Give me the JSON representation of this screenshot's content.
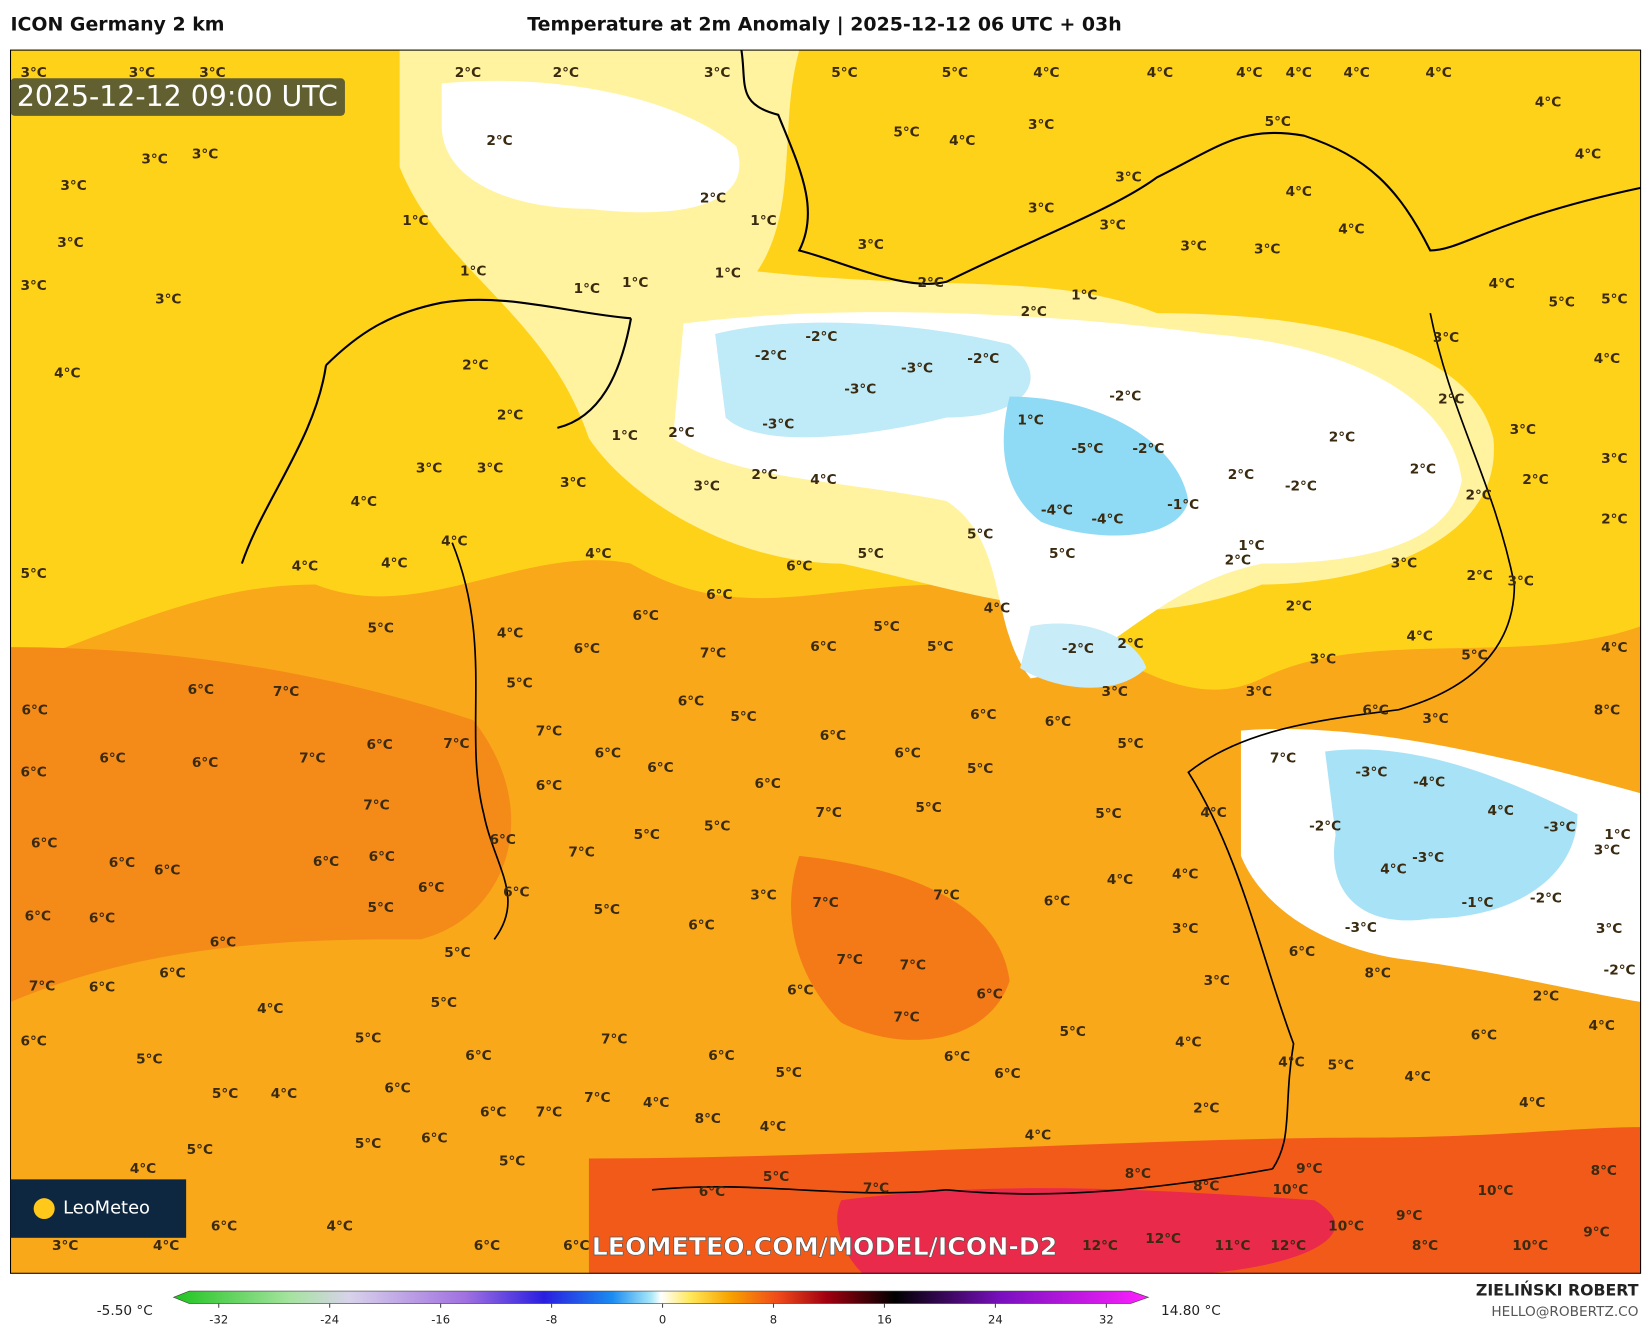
{
  "header": {
    "left": "ICON Germany 2 km",
    "center": "Temperature at 2m Anomaly | 2025-12-12 06 UTC + 03h"
  },
  "timestamp": "2025-12-12 09:00 UTC",
  "logo": "LeoMeteo",
  "watermark": "LEOMETEO.COM/MODEL/ICON-D2",
  "credit": {
    "name": "ZIELIŃSKI ROBERT",
    "email": "HELLO@ROBERTZ.CO"
  },
  "colorbar": {
    "min_label": "-5.50 °C",
    "max_label": "14.80 °C",
    "ticks": [
      -32,
      -24,
      -16,
      -8,
      0,
      8,
      16,
      24,
      32
    ]
  },
  "labels": [
    "3°C",
    "3°C",
    "3°C",
    "2°C",
    "2°C",
    "3°C",
    "5°C",
    "5°C",
    "4°C",
    "4°C",
    "4°C",
    "4°C",
    "4°C",
    "4°C",
    "4°C",
    "2°C",
    "3°C",
    "3°C",
    "5°C",
    "4°C",
    "3°C",
    "5°C",
    "4°C",
    "3°C",
    "2°C",
    "3°C",
    "4°C",
    "1°C",
    "1°C",
    "3°C",
    "3°C",
    "4°C",
    "3°C",
    "3°C",
    "3°C",
    "3°C",
    "1°C",
    "1°C",
    "1°C",
    "1°C",
    "2°C",
    "1°C",
    "2°C",
    "3°C",
    "3°C",
    "4°C",
    "5°C",
    "5°C",
    "-2°C",
    "-2°C",
    "-3°C",
    "-2°C",
    "3°C",
    "4°C",
    "4°C",
    "2°C",
    "-3°C",
    "-2°C",
    "2°C",
    "2°C",
    "-3°C",
    "1°C",
    "1°C",
    "2°C",
    "2°C",
    "3°C",
    "-5°C",
    "-2°C",
    "3°C",
    "3°C",
    "3°C",
    "2°C",
    "4°C",
    "2°C",
    "2°C",
    "2°C",
    "3°C",
    "3°C",
    "-2°C",
    "2°C",
    "4°C",
    "-4°C",
    "-4°C",
    "-1°C",
    "2°C",
    "4°C",
    "5°C",
    "5°C",
    "4°C",
    "5°C",
    "1°C",
    "2°C",
    "3°C",
    "5°C",
    "4°C",
    "4°C",
    "6°C",
    "6°C",
    "2°C",
    "3°C",
    "2°C",
    "4°C",
    "6°C",
    "5°C",
    "5°C",
    "4°C",
    "4°C",
    "-2°C",
    "2°C",
    "6°C",
    "7°C",
    "6°C",
    "5°C",
    "3°C",
    "5°C",
    "4°C",
    "5°C",
    "3°C",
    "3°C",
    "6°C",
    "7°C",
    "6°C",
    "6°C",
    "3°C",
    "8°C",
    "6°C",
    "5°C",
    "6°C",
    "6°C",
    "7°C",
    "6°C",
    "6°C",
    "7°C",
    "5°C",
    "6°C",
    "6°C",
    "7°C",
    "6°C",
    "6°C",
    "7°C",
    "6°C",
    "5°C",
    "6°C",
    "-3°C",
    "-4°C",
    "6°C",
    "6°C",
    "5°C",
    "7°C",
    "7°C",
    "5°C",
    "4°C",
    "4°C",
    "-2°C",
    "-3°C",
    "5°C",
    "5°C",
    "1°C",
    "6°C",
    "6°C",
    "7°C",
    "-3°C",
    "3°C",
    "6°C",
    "6°C",
    "6°C",
    "6°C",
    "4°C",
    "4°C",
    "4°C",
    "6°C",
    "6°C",
    "3°C",
    "7°C",
    "-1°C",
    "-2°C",
    "6°C",
    "7°C",
    "5°C",
    "5°C",
    "6°C",
    "6°C",
    "6°C",
    "3°C",
    "-3°C",
    "3°C",
    "6°C",
    "5°C",
    "6°C",
    "7°C",
    "7°C",
    "8°C",
    "-2°C",
    "6°C",
    "3°C",
    "7°C",
    "6°C",
    "6°C",
    "6°C",
    "2°C",
    "4°C",
    "5°C",
    "7°C",
    "4°C",
    "5°C",
    "7°C",
    "5°C",
    "6°C",
    "4°C",
    "6°C",
    "6°C",
    "6°C",
    "6°C",
    "5°C",
    "4°C",
    "5°C",
    "4°C",
    "5°C",
    "6°C",
    "6°C",
    "5°C",
    "4°C",
    "7°C",
    "4°C",
    "4°C",
    "2°C",
    "6°C",
    "7°C",
    "8°C",
    "4°C",
    "4°C",
    "6°C",
    "5°C",
    "5°C",
    "5°C",
    "4°C",
    "9°C",
    "8°C",
    "8°C",
    "5°C",
    "8°C",
    "10°C",
    "10°C",
    "6°C",
    "7°C",
    "10°C",
    "9°C",
    "6°C",
    "4°C",
    "6°C",
    "6°C",
    "12°C",
    "12°C",
    "11°C",
    "12°C",
    "8°C",
    "10°C",
    "9°C",
    "3°C",
    "4°C"
  ]
}
